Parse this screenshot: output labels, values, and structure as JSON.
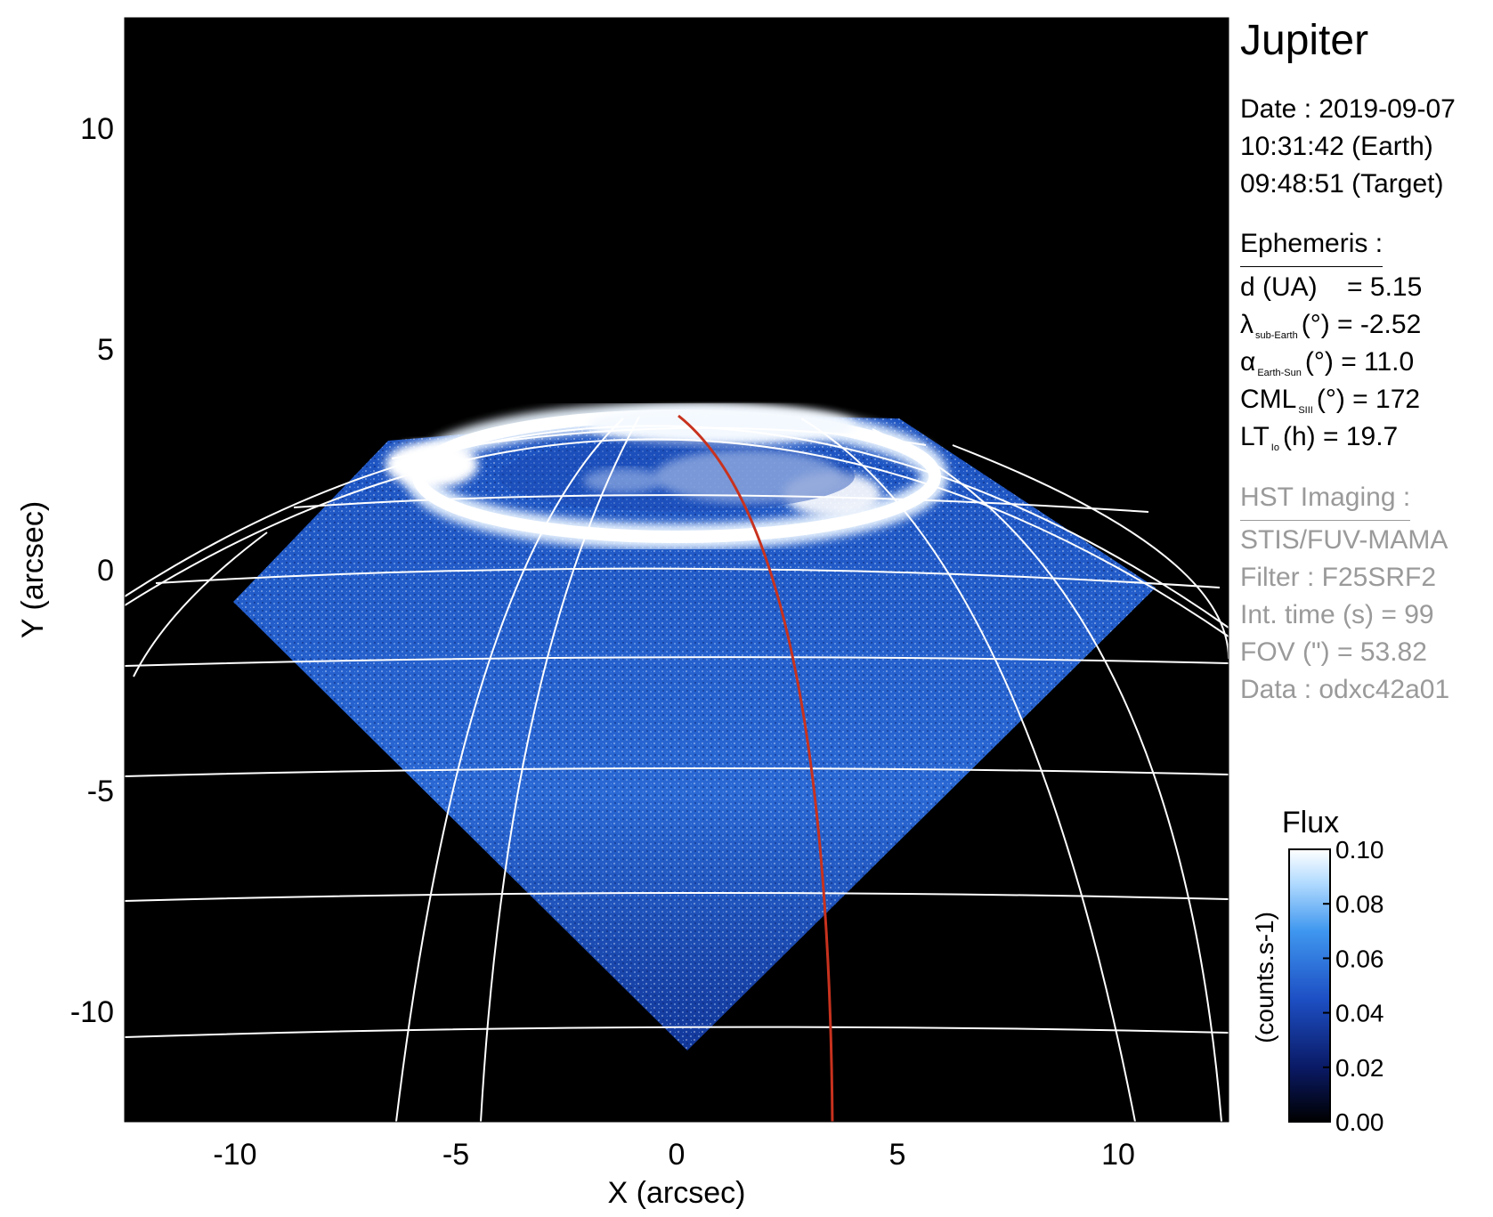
{
  "title": "Jupiter",
  "date_block": {
    "date_line": "Date : 2019-09-07",
    "earth_time": "10:31:42 (Earth)",
    "target_time": "09:48:51 (Target)"
  },
  "ephemeris": {
    "header": "Ephemeris :",
    "rows": [
      {
        "sym": "d (UA)",
        "sub": "",
        "rest": "    = 5.15"
      },
      {
        "sym": "λ",
        "sub": "sub-Earth",
        "rest": "(°) = -2.52"
      },
      {
        "sym": "α",
        "sub": "Earth-Sun",
        "rest": "(°) = 11.0"
      },
      {
        "sym": "CML",
        "sub": "SIII",
        "rest": "(°) = 172"
      },
      {
        "sym": "LT",
        "sub": "Io",
        "rest": "(h) = 19.7"
      }
    ]
  },
  "hst": {
    "header": "HST Imaging :",
    "instrument": "STIS/FUV-MAMA",
    "filter": "Filter : F25SRF2",
    "int_time": "Int. time (s) = 99",
    "fov": "FOV (\") = 53.82",
    "data_id": "Data : odxc42a01"
  },
  "axes": {
    "xlabel": "X (arcsec)",
    "ylabel": "Y (arcsec)",
    "xlim": [
      -12.5,
      12.5
    ],
    "ylim": [
      -12.5,
      12.5
    ],
    "xticks": [
      -10,
      -5,
      0,
      5,
      10
    ],
    "yticks": [
      -10,
      -5,
      0,
      5,
      10
    ]
  },
  "colorbar": {
    "title": "Flux",
    "unit_label": "(counts.s-1)",
    "ticks": [
      "0.00",
      "0.02",
      "0.04",
      "0.06",
      "0.08",
      "0.10"
    ]
  },
  "colors": {
    "background": "#000000",
    "grid": "#ffffff",
    "io_footpath": "#c8321e"
  }
}
